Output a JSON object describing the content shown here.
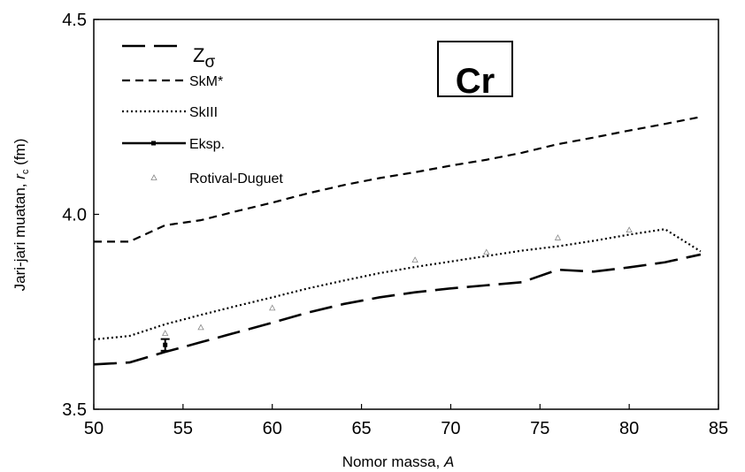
{
  "chart_data": {
    "type": "line",
    "title": "Cr",
    "xlabel": "Nomor massa, A",
    "ylabel": "Jari-jari muatan, r_c (fm)",
    "xlim": [
      50,
      85
    ],
    "ylim": [
      3.5,
      4.5
    ],
    "x_ticks": [
      "50",
      "55",
      "60",
      "65",
      "70",
      "75",
      "80",
      "85"
    ],
    "y_ticks": [
      "3.5",
      "4.0",
      "4.5"
    ],
    "x_tick_values": [
      50,
      55,
      60,
      65,
      70,
      75,
      80,
      85
    ],
    "y_tick_values": [
      3.5,
      4.0,
      4.5
    ],
    "grid": false,
    "legend_position": "top-left",
    "series": [
      {
        "name": "Zσ",
        "style": "long-dash",
        "x": [
          50,
          52,
          54,
          56,
          58,
          60,
          62,
          64,
          66,
          68,
          70,
          72,
          74,
          76,
          78,
          80,
          82,
          84
        ],
        "y": [
          3.615,
          3.62,
          3.647,
          3.672,
          3.697,
          3.722,
          3.748,
          3.77,
          3.787,
          3.8,
          3.81,
          3.818,
          3.826,
          3.858,
          3.853,
          3.864,
          3.877,
          3.897
        ]
      },
      {
        "name": "SkM*",
        "style": "short-dash",
        "x": [
          50,
          52,
          54,
          56,
          58,
          60,
          62,
          64,
          66,
          68,
          70,
          72,
          74,
          76,
          78,
          80,
          82,
          84
        ],
        "y": [
          3.93,
          3.93,
          3.972,
          3.985,
          4.008,
          4.03,
          4.054,
          4.075,
          4.093,
          4.108,
          4.125,
          4.14,
          4.158,
          4.18,
          4.197,
          4.215,
          4.232,
          4.25
        ]
      },
      {
        "name": "SkIII",
        "style": "dotted",
        "x": [
          50,
          52,
          54,
          56,
          58,
          60,
          62,
          64,
          66,
          68,
          70,
          72,
          74,
          76,
          78,
          80,
          82,
          84
        ],
        "y": [
          3.679,
          3.688,
          3.718,
          3.742,
          3.765,
          3.787,
          3.81,
          3.83,
          3.849,
          3.865,
          3.879,
          3.893,
          3.907,
          3.918,
          3.932,
          3.948,
          3.962,
          3.905
        ]
      },
      {
        "name": "Eksp.",
        "style": "solid-with-errorbar",
        "x": [
          54
        ],
        "y": [
          3.665
        ],
        "error": [
          0.015
        ]
      },
      {
        "name": "Rotival-Duguet",
        "style": "triangle-markers",
        "x": [
          54,
          56,
          60,
          68,
          72,
          76,
          80
        ],
        "y": [
          3.695,
          3.71,
          3.76,
          3.883,
          3.903,
          3.94,
          3.96
        ]
      }
    ]
  }
}
